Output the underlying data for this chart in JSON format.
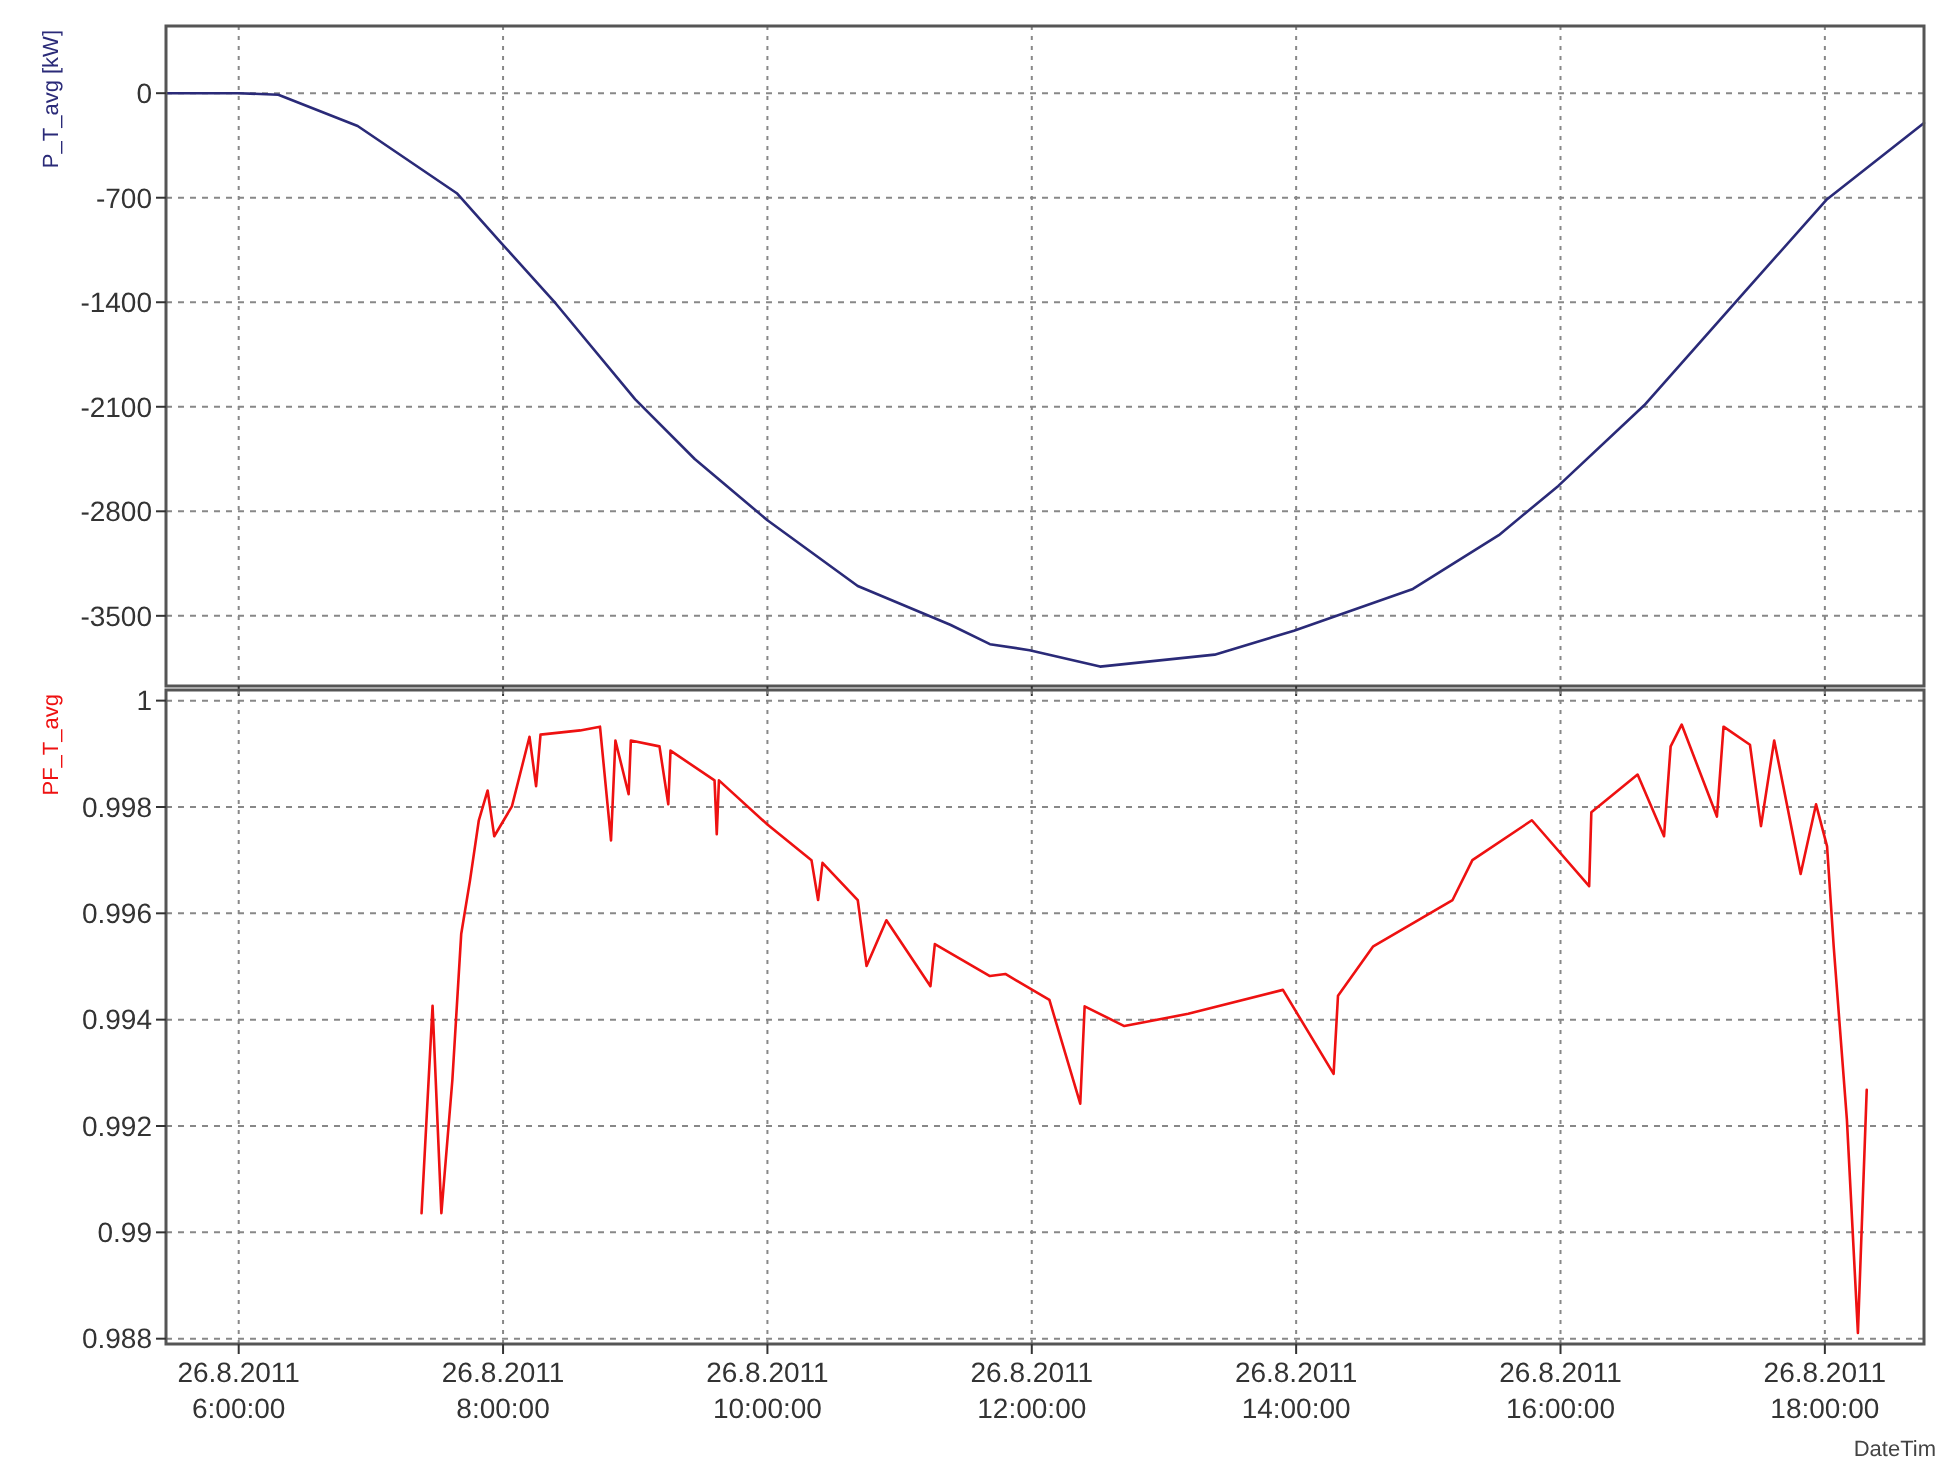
{
  "chart_data": [
    {
      "type": "line",
      "ylabel": "P_T_avg [kW]",
      "xlim": [
        "2011-08-26T05:27",
        "2011-08-26T18:45"
      ],
      "ylim": [
        -3970,
        450
      ],
      "yticks": [
        0,
        -700,
        -1400,
        -2100,
        -2800,
        -3500
      ],
      "xticks": [
        {
          "value": "2011-08-26T06:00",
          "label": null
        },
        {
          "value": "2011-08-26T08:00",
          "label": null
        },
        {
          "value": "2011-08-26T10:00",
          "label": null
        },
        {
          "value": "2011-08-26T12:00",
          "label": null
        },
        {
          "value": "2011-08-26T14:00",
          "label": null
        },
        {
          "value": "2011-08-26T16:00",
          "label": null
        },
        {
          "value": "2011-08-26T18:00",
          "label": null
        }
      ],
      "tick_labels": "y",
      "grid": true,
      "line_style": "solid",
      "marker": "none",
      "series": [
        {
          "color": "#2a2a78",
          "x": [
            "2011-08-26T05:27",
            "2011-08-26T06:00",
            "2011-08-26T06:18",
            "2011-08-26T06:54",
            "2011-08-26T07:39",
            "2011-08-26T07:59",
            "2011-08-26T08:24",
            "2011-08-26T09:00",
            "2011-08-26T09:27",
            "2011-08-26T10:00",
            "2011-08-26T10:41",
            "2011-08-26T11:23",
            "2011-08-26T11:41",
            "2011-08-26T11:59",
            "2011-08-26T12:31",
            "2011-08-26T13:23",
            "2011-08-26T13:59",
            "2011-08-26T14:53",
            "2011-08-26T15:32",
            "2011-08-26T15:59",
            "2011-08-26T16:38",
            "2011-08-26T17:23",
            "2011-08-26T18:01",
            "2011-08-26T18:45"
          ],
          "values": [
            0,
            0,
            -10,
            -220,
            -670,
            -1000,
            -1410,
            -2050,
            -2450,
            -2860,
            -3300,
            -3560,
            -3690,
            -3730,
            -3840,
            -3760,
            -3600,
            -3320,
            -2960,
            -2630,
            -2090,
            -1340,
            -710,
            -200
          ]
        }
      ]
    },
    {
      "type": "line",
      "ylabel": "PF_T_avg",
      "xlabel": "DateTim",
      "xlim": [
        "2011-08-26T05:27",
        "2011-08-26T18:45"
      ],
      "ylim": [
        0.9879,
        1.0002
      ],
      "yticks": [
        1,
        0.998,
        0.996,
        0.994,
        0.992,
        0.99,
        0.988
      ],
      "xticks": [
        {
          "value": "2011-08-26T06:00",
          "label": "26.8.2011 6:00:00"
        },
        {
          "value": "2011-08-26T08:00",
          "label": "26.8.2011 8:00:00"
        },
        {
          "value": "2011-08-26T10:00",
          "label": "26.8.2011 10:00:00"
        },
        {
          "value": "2011-08-26T12:00",
          "label": "26.8.2011 12:00:00"
        },
        {
          "value": "2011-08-26T14:00",
          "label": "26.8.2011 14:00:00"
        },
        {
          "value": "2011-08-26T16:00",
          "label": "26.8.2011 16:00:00"
        },
        {
          "value": "2011-08-26T18:00",
          "label": "26.8.2011 18:00:00"
        }
      ],
      "grid": true,
      "line_style": "solid",
      "marker": "none",
      "series": [
        {
          "color": "#ee1111",
          "x": [
            "2011-08-26T07:23",
            "2011-08-26T07:28",
            "2011-08-26T07:32",
            "2011-08-26T07:37",
            "2011-08-26T07:41",
            "2011-08-26T07:45",
            "2011-08-26T07:49",
            "2011-08-26T07:53",
            "2011-08-26T07:56",
            "2011-08-26T08:04",
            "2011-08-26T08:12",
            "2011-08-26T08:15",
            "2011-08-26T08:17",
            "2011-08-26T08:35",
            "2011-08-26T08:44",
            "2011-08-26T08:49",
            "2011-08-26T08:51",
            "2011-08-26T08:57",
            "2011-08-26T08:58",
            "2011-08-26T09:11",
            "2011-08-26T09:15",
            "2011-08-26T09:16",
            "2011-08-26T09:36",
            "2011-08-26T09:37",
            "2011-08-26T09:38",
            "2011-08-26T10:00",
            "2011-08-26T10:20",
            "2011-08-26T10:23",
            "2011-08-26T10:25",
            "2011-08-26T10:41",
            "2011-08-26T10:45",
            "2011-08-26T10:54",
            "2011-08-26T11:14",
            "2011-08-26T11:16",
            "2011-08-26T11:41",
            "2011-08-26T11:48",
            "2011-08-26T12:08",
            "2011-08-26T12:22",
            "2011-08-26T12:24",
            "2011-08-26T12:42",
            "2011-08-26T13:11",
            "2011-08-26T13:54",
            "2011-08-26T14:17",
            "2011-08-26T14:19",
            "2011-08-26T14:35",
            "2011-08-26T15:11",
            "2011-08-26T15:20",
            "2011-08-26T15:47",
            "2011-08-26T16:13",
            "2011-08-26T16:14",
            "2011-08-26T16:35",
            "2011-08-26T16:47",
            "2011-08-26T16:50",
            "2011-08-26T16:55",
            "2011-08-26T17:11",
            "2011-08-26T17:14",
            "2011-08-26T17:26",
            "2011-08-26T17:31",
            "2011-08-26T17:37",
            "2011-08-26T17:43",
            "2011-08-26T17:49",
            "2011-08-26T17:56",
            "2011-08-26T18:01",
            "2011-08-26T18:04",
            "2011-08-26T18:10",
            "2011-08-26T18:15",
            "2011-08-26T18:19"
          ],
          "values": [
            0.99036,
            0.99426,
            0.99036,
            0.99287,
            0.99561,
            0.99662,
            0.99775,
            0.99831,
            0.99745,
            0.99801,
            0.99932,
            0.99839,
            0.99936,
            0.99944,
            0.99951,
            0.99737,
            0.99925,
            0.99824,
            0.99925,
            0.99914,
            0.99805,
            0.99906,
            0.9985,
            0.99749,
            0.9985,
            0.99767,
            0.997,
            0.99625,
            0.99695,
            0.99625,
            0.99501,
            0.99587,
            0.99463,
            0.99542,
            0.99482,
            0.99486,
            0.99437,
            0.99242,
            0.99425,
            0.99388,
            0.99411,
            0.99456,
            0.99298,
            0.99445,
            0.99538,
            0.99625,
            0.997,
            0.99775,
            0.99651,
            0.9979,
            0.99861,
            0.99745,
            0.99914,
            0.99955,
            0.99782,
            0.99951,
            0.99917,
            0.99764,
            0.99925,
            0.998,
            0.99674,
            0.99805,
            0.99726,
            0.99538,
            0.99212,
            0.98811,
            0.99268
          ]
        }
      ]
    }
  ]
}
